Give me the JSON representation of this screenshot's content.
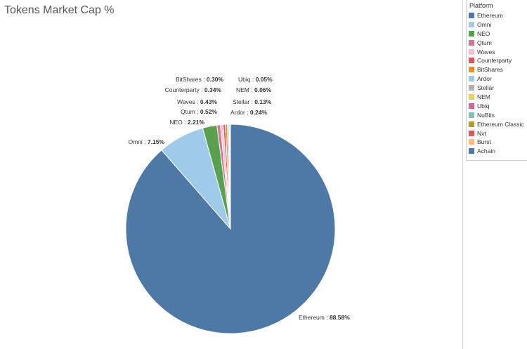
{
  "chart_data": {
    "type": "pie",
    "title": "Tokens Market Cap %",
    "legend_title": "Platform",
    "legend_position": "right",
    "slices": [
      {
        "name": "Ethereum",
        "value": 88.58,
        "label": "88.58%",
        "color": "#4e79a7"
      },
      {
        "name": "Omni",
        "value": 7.15,
        "label": "7.15%",
        "color": "#a0cbe8"
      },
      {
        "name": "NEO",
        "value": 2.21,
        "label": "2.21%",
        "color": "#59a14f"
      },
      {
        "name": "Qtum",
        "value": 0.52,
        "label": "0.52%",
        "color": "#d37295"
      },
      {
        "name": "Waves",
        "value": 0.43,
        "label": "0.43%",
        "color": "#fabfd2"
      },
      {
        "name": "Counterparty",
        "value": 0.34,
        "label": "0.34%",
        "color": "#e15759"
      },
      {
        "name": "BitShares",
        "value": 0.3,
        "label": "0.30%",
        "color": "#f28e2b"
      },
      {
        "name": "Ardor",
        "value": 0.24,
        "label": "0.24%",
        "color": "#9ecae9"
      },
      {
        "name": "Stellar",
        "value": 0.13,
        "label": "0.13%",
        "color": "#bab0ac"
      },
      {
        "name": "NEM",
        "value": 0.06,
        "label": "0.06%",
        "color": "#f1ce63"
      },
      {
        "name": "Ubiq",
        "value": 0.05,
        "label": "0.05%",
        "color": "#d4639b"
      },
      {
        "name": "NuBits",
        "value": 0.0,
        "label": "",
        "color": "#86bcb6"
      },
      {
        "name": "Ethereum Classic",
        "value": 0.0,
        "label": "",
        "color": "#b6992d"
      },
      {
        "name": "Nxt",
        "value": 0.0,
        "label": "",
        "color": "#e15759"
      },
      {
        "name": "Burst",
        "value": 0.0,
        "label": "",
        "color": "#ffbe7d"
      },
      {
        "name": "Achain",
        "value": 0.0,
        "label": "",
        "color": "#4e79a7"
      }
    ]
  }
}
